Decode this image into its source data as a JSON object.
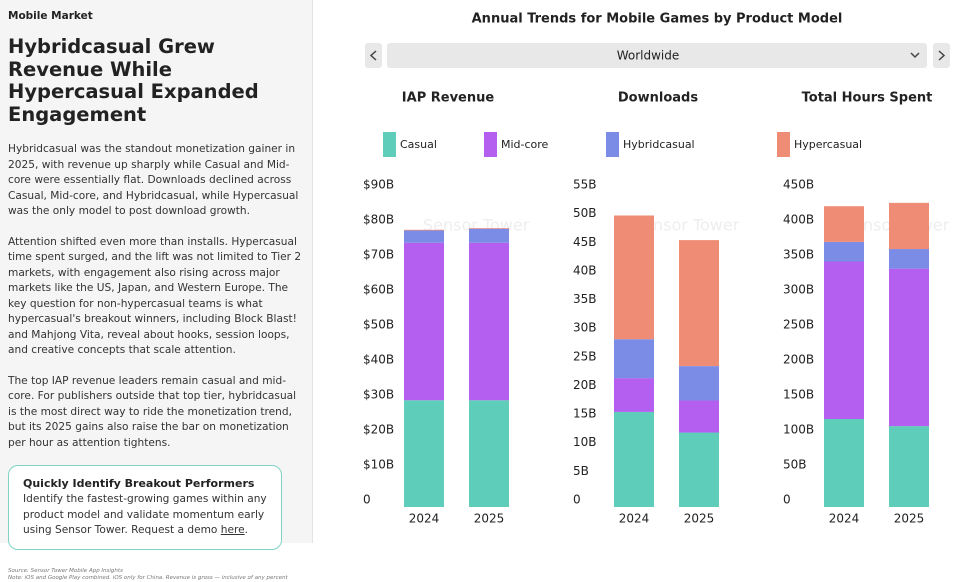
{
  "sidebar": {
    "kicker": "Mobile Market",
    "headline": "Hybridcasual Grew Revenue While Hypercasual Expanded Engagement",
    "paragraphs": [
      "Hybridcasual was the standout monetization gainer in 2025, with revenue up sharply while Casual and Mid-core were essentially flat. Downloads declined across Casual, Mid-core, and Hybridcasual, while Hypercasual was the only model to post download growth.",
      "Attention shifted even more than installs. Hypercasual time spent surged, and the lift was not limited to Tier 2 markets, with engagement also rising across major markets like the US, Japan, and Western Europe. The key question for non-hypercasual teams is what hypercasual's breakout winners, including Block Blast! and Mahjong Vita, reveal about hooks, session loops, and creative concepts that scale attention.",
      "The top IAP revenue leaders remain casual and mid-core. For publishers outside that top tier, hybridcasual is the most direct way to ride the monetization trend, but its 2025 gains also raise the bar on monetization per hour as attention tightens."
    ],
    "callout": {
      "title": "Quickly Identify Breakout Performers",
      "body": "Identify the fastest-growing games within any product model and validate momentum early using Sensor Tower. Request a demo ",
      "link": "here",
      "end": "."
    },
    "source": "Source: Sensor Tower Mobile App Insights",
    "note": "Note: iOS and Google Play combined. iOS only for China. Revenue is gross — inclusive of any percent"
  },
  "panel": {
    "title": "Annual Trends for Mobile Games by Product Model",
    "region": "Worldwide",
    "watermark": "Sensor Tower"
  },
  "chart_data": [
    {
      "type": "stacked-bar",
      "title": "IAP Revenue",
      "categories": [
        "2024",
        "2025"
      ],
      "ylim": [
        0,
        90
      ],
      "yticks": [
        0,
        {
          "value": 10,
          "label": "$10B"
        },
        {
          "value": 20,
          "label": "$20B"
        },
        {
          "value": 30,
          "label": "$30B"
        },
        {
          "value": 40,
          "label": "$40B"
        },
        {
          "value": 50,
          "label": "$50B"
        },
        {
          "value": 60,
          "label": "$60B"
        },
        {
          "value": 70,
          "label": "$70B"
        },
        {
          "value": 80,
          "label": "$80B"
        },
        {
          "value": 90,
          "label": "$90B"
        }
      ],
      "series": [
        {
          "name": "Casual",
          "color": "#5ecdb9",
          "values": [
            30.5,
            30.5
          ]
        },
        {
          "name": "Mid-core",
          "color": "#b45ff0",
          "values": [
            45,
            45
          ]
        },
        {
          "name": "Hybridcasual",
          "color": "#7a8ce6",
          "values": [
            3.5,
            4
          ]
        },
        {
          "name": "Hypercasual",
          "color": "#ef8c75",
          "values": [
            0.2,
            0.2
          ]
        }
      ]
    },
    {
      "type": "stacked-bar",
      "title": "Downloads",
      "categories": [
        "2024",
        "2025"
      ],
      "ylim": [
        0,
        55
      ],
      "yticks": [
        0,
        {
          "value": 5,
          "label": "5B"
        },
        {
          "value": 10,
          "label": "10B"
        },
        {
          "value": 15,
          "label": "15B"
        },
        {
          "value": 20,
          "label": "20B"
        },
        {
          "value": 25,
          "label": "25B"
        },
        {
          "value": 30,
          "label": "30B"
        },
        {
          "value": 35,
          "label": "35B"
        },
        {
          "value": 40,
          "label": "40B"
        },
        {
          "value": 45,
          "label": "45B"
        },
        {
          "value": 50,
          "label": "50B"
        },
        {
          "value": 55,
          "label": "55B"
        }
      ],
      "series": [
        {
          "name": "Casual",
          "color": "#5ecdb9",
          "values": [
            16.6,
            13
          ]
        },
        {
          "name": "Mid-core",
          "color": "#b45ff0",
          "values": [
            5.9,
            5.6
          ]
        },
        {
          "name": "Hybridcasual",
          "color": "#7a8ce6",
          "values": [
            6.8,
            6
          ]
        },
        {
          "name": "Hypercasual",
          "color": "#ef8c75",
          "values": [
            21.6,
            22
          ]
        }
      ]
    },
    {
      "type": "stacked-bar",
      "title": "Total Hours Spent",
      "categories": [
        "2024",
        "2025"
      ],
      "ylim": [
        0,
        450
      ],
      "yticks": [
        0,
        {
          "value": 50,
          "label": "50B"
        },
        {
          "value": 100,
          "label": "100B"
        },
        {
          "value": 150,
          "label": "150B"
        },
        {
          "value": 200,
          "label": "200B"
        },
        {
          "value": 250,
          "label": "250B"
        },
        {
          "value": 300,
          "label": "300B"
        },
        {
          "value": 350,
          "label": "350B"
        },
        {
          "value": 400,
          "label": "400B"
        },
        {
          "value": 450,
          "label": "450B"
        }
      ],
      "series": [
        {
          "name": "Casual",
          "color": "#5ecdb9",
          "values": [
            125.7,
            115.5
          ]
        },
        {
          "name": "Mid-core",
          "color": "#b45ff0",
          "values": [
            225,
            225
          ]
        },
        {
          "name": "Hybridcasual",
          "color": "#7a8ce6",
          "values": [
            28,
            28
          ]
        },
        {
          "name": "Hypercasual",
          "color": "#ef8c75",
          "values": [
            51,
            66
          ]
        }
      ]
    }
  ]
}
